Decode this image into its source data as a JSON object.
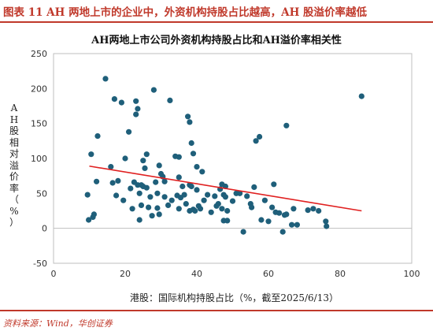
{
  "header": {
    "figure_title": "图表 11  AH 两地上市的企业中，外资机构持股占比越高，AH 股溢价率越低"
  },
  "footer": {
    "source": "资料来源：Wind，华创证券"
  },
  "colors": {
    "accent_red": "#c0392b",
    "point": "#1f5f7a",
    "trend": "#e02020"
  },
  "chart_data": {
    "type": "scatter",
    "title": "AH两地上市公司外资机构持股占比和AH溢价率相关性",
    "xlabel": "港股：国际机构持股占比（%，截至2025/6/13）",
    "ylabel": "AH股相对溢价率（%）",
    "xlim": [
      0,
      100
    ],
    "ylim": [
      -50,
      250
    ],
    "xticks": [
      0,
      20,
      40,
      60,
      80,
      100
    ],
    "yticks": [
      -50,
      0,
      50,
      100,
      150,
      200,
      250
    ],
    "grid": false,
    "trendline": {
      "x": [
        10,
        86
      ],
      "y": [
        89,
        25
      ]
    },
    "points": [
      {
        "x": 9.5,
        "y": 48
      },
      {
        "x": 9.8,
        "y": 12
      },
      {
        "x": 10.5,
        "y": 106
      },
      {
        "x": 11,
        "y": 16
      },
      {
        "x": 11.3,
        "y": 20
      },
      {
        "x": 12,
        "y": 67
      },
      {
        "x": 12.3,
        "y": 132
      },
      {
        "x": 14.5,
        "y": 214
      },
      {
        "x": 16,
        "y": 88
      },
      {
        "x": 16.5,
        "y": 65
      },
      {
        "x": 17,
        "y": 185
      },
      {
        "x": 17.5,
        "y": 47
      },
      {
        "x": 18,
        "y": 68
      },
      {
        "x": 19,
        "y": 180
      },
      {
        "x": 19.5,
        "y": 40
      },
      {
        "x": 20,
        "y": 100
      },
      {
        "x": 21,
        "y": 138
      },
      {
        "x": 21.5,
        "y": 57
      },
      {
        "x": 22,
        "y": 28
      },
      {
        "x": 22.5,
        "y": 66
      },
      {
        "x": 23,
        "y": 163
      },
      {
        "x": 23,
        "y": 182
      },
      {
        "x": 23.5,
        "y": 171
      },
      {
        "x": 23.5,
        "y": 62
      },
      {
        "x": 24,
        "y": 50
      },
      {
        "x": 24,
        "y": 12
      },
      {
        "x": 24.5,
        "y": 33
      },
      {
        "x": 24.5,
        "y": 62
      },
      {
        "x": 25,
        "y": 97
      },
      {
        "x": 25,
        "y": 60
      },
      {
        "x": 25.5,
        "y": 86
      },
      {
        "x": 26,
        "y": 106
      },
      {
        "x": 26,
        "y": 58
      },
      {
        "x": 26.5,
        "y": 30
      },
      {
        "x": 27,
        "y": 45
      },
      {
        "x": 27.5,
        "y": 18
      },
      {
        "x": 28,
        "y": 198
      },
      {
        "x": 28.5,
        "y": 66
      },
      {
        "x": 29,
        "y": 50
      },
      {
        "x": 29,
        "y": 29
      },
      {
        "x": 29.5,
        "y": 90
      },
      {
        "x": 29.5,
        "y": 20
      },
      {
        "x": 30,
        "y": 78
      },
      {
        "x": 30.5,
        "y": 74
      },
      {
        "x": 31,
        "y": 67
      },
      {
        "x": 31,
        "y": 45
      },
      {
        "x": 32,
        "y": 33
      },
      {
        "x": 32.5,
        "y": 183
      },
      {
        "x": 33,
        "y": 40
      },
      {
        "x": 34,
        "y": 103
      },
      {
        "x": 34.5,
        "y": 47
      },
      {
        "x": 35,
        "y": 102
      },
      {
        "x": 35,
        "y": 73
      },
      {
        "x": 35,
        "y": 28
      },
      {
        "x": 35.5,
        "y": 44
      },
      {
        "x": 36,
        "y": 60
      },
      {
        "x": 36.5,
        "y": 48
      },
      {
        "x": 37,
        "y": 35
      },
      {
        "x": 37.5,
        "y": 160
      },
      {
        "x": 38,
        "y": 152
      },
      {
        "x": 38,
        "y": 62
      },
      {
        "x": 38,
        "y": 25
      },
      {
        "x": 38.5,
        "y": 122
      },
      {
        "x": 38.5,
        "y": 60
      },
      {
        "x": 39,
        "y": 107
      },
      {
        "x": 39,
        "y": 27
      },
      {
        "x": 39.5,
        "y": 25
      },
      {
        "x": 40,
        "y": 88
      },
      {
        "x": 40,
        "y": 55
      },
      {
        "x": 40.5,
        "y": 32
      },
      {
        "x": 41,
        "y": 28
      },
      {
        "x": 41.5,
        "y": 81
      },
      {
        "x": 42,
        "y": 40
      },
      {
        "x": 43,
        "y": 48
      },
      {
        "x": 44,
        "y": 23
      },
      {
        "x": 45,
        "y": 46
      },
      {
        "x": 45.5,
        "y": 32
      },
      {
        "x": 46,
        "y": 35
      },
      {
        "x": 46.5,
        "y": 56
      },
      {
        "x": 47,
        "y": 63
      },
      {
        "x": 47,
        "y": 28
      },
      {
        "x": 47.5,
        "y": 48
      },
      {
        "x": 47.5,
        "y": 11
      },
      {
        "x": 48,
        "y": 60
      },
      {
        "x": 48,
        "y": 45
      },
      {
        "x": 48.5,
        "y": 25
      },
      {
        "x": 48.5,
        "y": 11
      },
      {
        "x": 50,
        "y": 39
      },
      {
        "x": 51,
        "y": 50
      },
      {
        "x": 52,
        "y": 50
      },
      {
        "x": 53,
        "y": -5
      },
      {
        "x": 54,
        "y": 46
      },
      {
        "x": 55,
        "y": 35
      },
      {
        "x": 55.3,
        "y": 30
      },
      {
        "x": 56,
        "y": 59
      },
      {
        "x": 56.5,
        "y": 125
      },
      {
        "x": 57.5,
        "y": 131
      },
      {
        "x": 58,
        "y": 12
      },
      {
        "x": 59,
        "y": 40
      },
      {
        "x": 60,
        "y": 10
      },
      {
        "x": 61,
        "y": 30
      },
      {
        "x": 61.5,
        "y": 63
      },
      {
        "x": 62,
        "y": 23
      },
      {
        "x": 63,
        "y": 22
      },
      {
        "x": 64,
        "y": -5
      },
      {
        "x": 64.5,
        "y": 19
      },
      {
        "x": 65,
        "y": 20
      },
      {
        "x": 65,
        "y": 147
      },
      {
        "x": 66.5,
        "y": 5
      },
      {
        "x": 67,
        "y": 28
      },
      {
        "x": 68,
        "y": 5
      },
      {
        "x": 71,
        "y": 26
      },
      {
        "x": 72.5,
        "y": 28
      },
      {
        "x": 74,
        "y": 25
      },
      {
        "x": 76,
        "y": 10
      },
      {
        "x": 76.2,
        "y": 3
      },
      {
        "x": 86,
        "y": 189
      }
    ]
  }
}
